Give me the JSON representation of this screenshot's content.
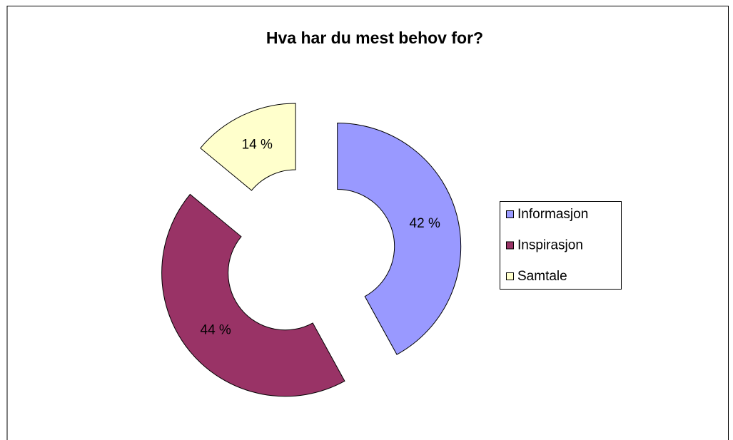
{
  "chart_data": {
    "type": "donut",
    "title": "Hva har du mest behov for?",
    "categories": [
      "Informasjon",
      "Inspirasjon",
      "Samtale"
    ],
    "values": [
      42,
      44,
      14
    ],
    "value_labels": [
      "42 %",
      "44 %",
      "14 %"
    ],
    "colors": [
      "#9999ff",
      "#993366",
      "#ffffcc"
    ],
    "legend": "right"
  }
}
